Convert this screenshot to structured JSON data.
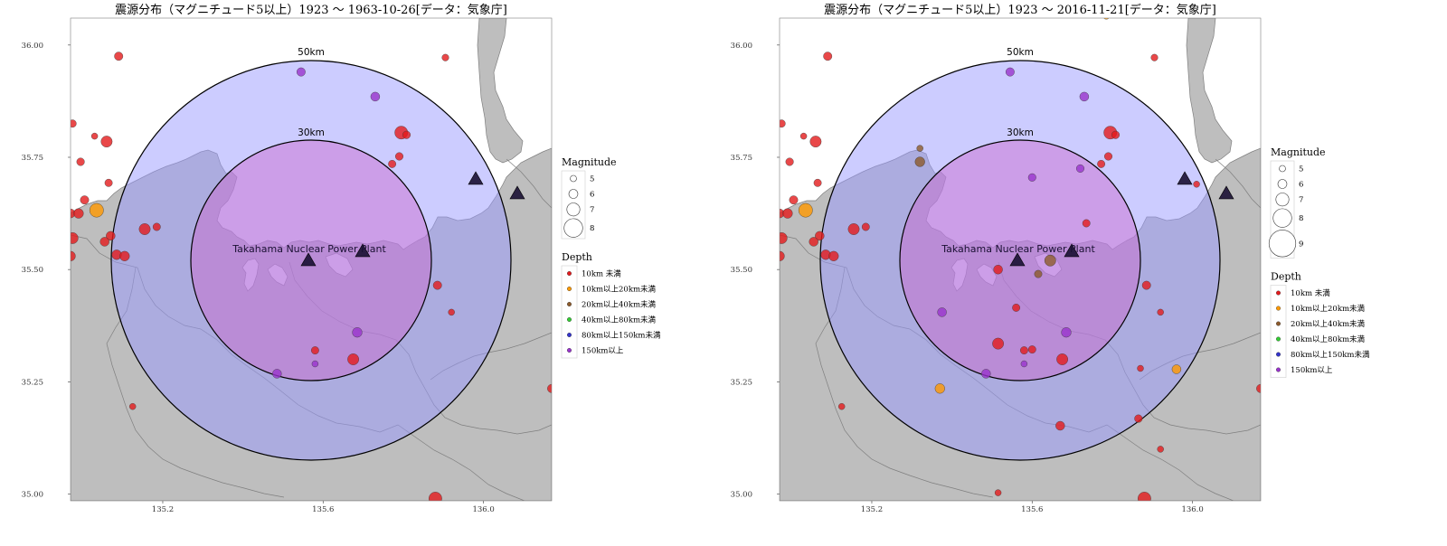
{
  "colors": {
    "land": "#bebebe",
    "sea": "#ffffff",
    "border": "#7f7f7f",
    "ring50": "#9999ff",
    "ring30": "#cc66cc",
    "depth_10": "#e31a1c",
    "depth_10_20": "#ff9900",
    "depth_20_40": "#8c5a2b",
    "depth_40_80": "#33cc33",
    "depth_80_150": "#3333cc",
    "depth_150": "#9933cc"
  },
  "legend": {
    "magnitude_title": "Magnitude",
    "depth_title": "Depth",
    "depth_labels": [
      "10km 未満",
      "10km以上20km未満",
      "20km以上40km未満",
      "40km以上80km未満",
      "80km以上150km未満",
      "150km以上"
    ]
  },
  "plant": {
    "label": "Takahama Nuclear Power Plant",
    "lon": 135.505,
    "lat": 35.522
  },
  "rings": {
    "label_50": "50km",
    "label_30": "30km"
  },
  "chart_data": [
    {
      "type": "scatter",
      "title": "震源分布（マグニチュード5以上）1923 ～ 1963-10-26[データ：気象庁]",
      "xlabel": "",
      "ylabel": "",
      "xlim": [
        134.97,
        136.17
      ],
      "ylim": [
        34.985,
        36.06
      ],
      "xticks": [
        "135.2",
        "135.6",
        "136.0"
      ],
      "yticks": [
        "35.00",
        "35.25",
        "35.50",
        "35.75",
        "36.00"
      ],
      "magnitude_legend": [
        "5",
        "6",
        "7",
        "8"
      ],
      "points": [
        {
          "lon": 135.09,
          "lat": 35.975,
          "mag": 5.8,
          "depth": 0
        },
        {
          "lon": 135.545,
          "lat": 35.94,
          "mag": 5.8,
          "depth": 5
        },
        {
          "lon": 135.905,
          "lat": 35.972,
          "mag": 5.2,
          "depth": 0
        },
        {
          "lon": 134.975,
          "lat": 35.825,
          "mag": 5.5,
          "depth": 0
        },
        {
          "lon": 135.03,
          "lat": 35.797,
          "mag": 5.0,
          "depth": 0
        },
        {
          "lon": 135.06,
          "lat": 35.785,
          "mag": 6.6,
          "depth": 0
        },
        {
          "lon": 135.73,
          "lat": 35.885,
          "mag": 6.0,
          "depth": 5
        },
        {
          "lon": 135.795,
          "lat": 35.805,
          "mag": 7.0,
          "depth": 0
        },
        {
          "lon": 135.808,
          "lat": 35.8,
          "mag": 5.6,
          "depth": 0
        },
        {
          "lon": 134.995,
          "lat": 35.74,
          "mag": 5.6,
          "depth": 0
        },
        {
          "lon": 135.79,
          "lat": 35.752,
          "mag": 5.6,
          "depth": 0
        },
        {
          "lon": 135.772,
          "lat": 35.735,
          "mag": 5.5,
          "depth": 0
        },
        {
          "lon": 135.065,
          "lat": 35.693,
          "mag": 5.5,
          "depth": 0
        },
        {
          "lon": 134.97,
          "lat": 35.625,
          "mag": 6.0,
          "depth": 0
        },
        {
          "lon": 134.99,
          "lat": 35.625,
          "mag": 6.2,
          "depth": 0
        },
        {
          "lon": 135.005,
          "lat": 35.655,
          "mag": 5.8,
          "depth": 0
        },
        {
          "lon": 135.035,
          "lat": 35.632,
          "mag": 7.2,
          "depth": 1
        },
        {
          "lon": 135.185,
          "lat": 35.595,
          "mag": 5.5,
          "depth": 0
        },
        {
          "lon": 135.155,
          "lat": 35.59,
          "mag": 6.6,
          "depth": 0
        },
        {
          "lon": 135.07,
          "lat": 35.575,
          "mag": 6.0,
          "depth": 0
        },
        {
          "lon": 135.055,
          "lat": 35.562,
          "mag": 6.0,
          "depth": 0
        },
        {
          "lon": 135.085,
          "lat": 35.533,
          "mag": 6.2,
          "depth": 0
        },
        {
          "lon": 135.105,
          "lat": 35.53,
          "mag": 6.2,
          "depth": 0
        },
        {
          "lon": 134.975,
          "lat": 35.57,
          "mag": 6.6,
          "depth": 0
        },
        {
          "lon": 134.97,
          "lat": 35.53,
          "mag": 6.2,
          "depth": 0
        },
        {
          "lon": 135.885,
          "lat": 35.465,
          "mag": 5.8,
          "depth": 0
        },
        {
          "lon": 135.92,
          "lat": 35.405,
          "mag": 5.0,
          "depth": 0
        },
        {
          "lon": 135.685,
          "lat": 35.36,
          "mag": 6.2,
          "depth": 5
        },
        {
          "lon": 135.58,
          "lat": 35.32,
          "mag": 5.5,
          "depth": 0
        },
        {
          "lon": 135.675,
          "lat": 35.3,
          "mag": 6.6,
          "depth": 0
        },
        {
          "lon": 135.58,
          "lat": 35.29,
          "mag": 5.0,
          "depth": 5
        },
        {
          "lon": 135.485,
          "lat": 35.268,
          "mag": 6.0,
          "depth": 5
        },
        {
          "lon": 135.125,
          "lat": 35.195,
          "mag": 5.0,
          "depth": 0
        },
        {
          "lon": 135.88,
          "lat": 34.99,
          "mag": 7.0,
          "depth": 0
        },
        {
          "lon": 136.17,
          "lat": 35.235,
          "mag": 5.8,
          "depth": 0
        }
      ]
    },
    {
      "type": "scatter",
      "title": "震源分布（マグニチュード5以上）1923 ～ 2016-11-21[データ：気象庁]",
      "xlabel": "",
      "ylabel": "",
      "xlim": [
        134.97,
        136.17
      ],
      "ylim": [
        34.985,
        36.06
      ],
      "xticks": [
        "135.2",
        "135.6",
        "136.0"
      ],
      "yticks": [
        "35.00",
        "35.25",
        "35.50",
        "35.75",
        "36.00"
      ],
      "magnitude_legend": [
        "5",
        "6",
        "7",
        "8",
        "9"
      ],
      "points": [
        {
          "lon": 135.09,
          "lat": 35.975,
          "mag": 5.8,
          "depth": 0
        },
        {
          "lon": 135.545,
          "lat": 35.94,
          "mag": 5.8,
          "depth": 5
        },
        {
          "lon": 135.905,
          "lat": 35.972,
          "mag": 5.2,
          "depth": 0
        },
        {
          "lon": 135.785,
          "lat": 36.065,
          "mag": 5.2,
          "depth": 1
        },
        {
          "lon": 134.975,
          "lat": 35.825,
          "mag": 5.5,
          "depth": 0
        },
        {
          "lon": 135.03,
          "lat": 35.797,
          "mag": 5.0,
          "depth": 0
        },
        {
          "lon": 135.06,
          "lat": 35.785,
          "mag": 6.6,
          "depth": 0
        },
        {
          "lon": 135.73,
          "lat": 35.885,
          "mag": 6.0,
          "depth": 5
        },
        {
          "lon": 135.795,
          "lat": 35.805,
          "mag": 7.0,
          "depth": 0
        },
        {
          "lon": 135.808,
          "lat": 35.8,
          "mag": 5.6,
          "depth": 0
        },
        {
          "lon": 134.995,
          "lat": 35.74,
          "mag": 5.6,
          "depth": 0
        },
        {
          "lon": 135.79,
          "lat": 35.752,
          "mag": 5.6,
          "depth": 0
        },
        {
          "lon": 135.772,
          "lat": 35.735,
          "mag": 5.5,
          "depth": 0
        },
        {
          "lon": 135.32,
          "lat": 35.77,
          "mag": 5.0,
          "depth": 2
        },
        {
          "lon": 135.32,
          "lat": 35.74,
          "mag": 6.2,
          "depth": 2
        },
        {
          "lon": 135.72,
          "lat": 35.725,
          "mag": 5.6,
          "depth": 5
        },
        {
          "lon": 135.065,
          "lat": 35.693,
          "mag": 5.5,
          "depth": 0
        },
        {
          "lon": 135.6,
          "lat": 35.705,
          "mag": 5.6,
          "depth": 5
        },
        {
          "lon": 136.01,
          "lat": 35.69,
          "mag": 5.0,
          "depth": 0
        },
        {
          "lon": 134.97,
          "lat": 35.625,
          "mag": 6.0,
          "depth": 0
        },
        {
          "lon": 134.99,
          "lat": 35.625,
          "mag": 6.2,
          "depth": 0
        },
        {
          "lon": 135.005,
          "lat": 35.655,
          "mag": 5.8,
          "depth": 0
        },
        {
          "lon": 135.035,
          "lat": 35.632,
          "mag": 7.2,
          "depth": 1
        },
        {
          "lon": 135.185,
          "lat": 35.595,
          "mag": 5.5,
          "depth": 0
        },
        {
          "lon": 135.155,
          "lat": 35.59,
          "mag": 6.6,
          "depth": 0
        },
        {
          "lon": 135.07,
          "lat": 35.575,
          "mag": 6.0,
          "depth": 0
        },
        {
          "lon": 135.055,
          "lat": 35.562,
          "mag": 6.0,
          "depth": 0
        },
        {
          "lon": 135.085,
          "lat": 35.533,
          "mag": 6.2,
          "depth": 0
        },
        {
          "lon": 135.105,
          "lat": 35.53,
          "mag": 6.2,
          "depth": 0
        },
        {
          "lon": 134.975,
          "lat": 35.57,
          "mag": 6.6,
          "depth": 0
        },
        {
          "lon": 134.97,
          "lat": 35.53,
          "mag": 6.2,
          "depth": 0
        },
        {
          "lon": 135.735,
          "lat": 35.603,
          "mag": 5.5,
          "depth": 0
        },
        {
          "lon": 135.645,
          "lat": 35.52,
          "mag": 6.6,
          "depth": 2
        },
        {
          "lon": 135.615,
          "lat": 35.49,
          "mag": 5.5,
          "depth": 2
        },
        {
          "lon": 135.515,
          "lat": 35.5,
          "mag": 6.0,
          "depth": 0
        },
        {
          "lon": 135.885,
          "lat": 35.465,
          "mag": 5.8,
          "depth": 0
        },
        {
          "lon": 135.56,
          "lat": 35.415,
          "mag": 5.5,
          "depth": 0
        },
        {
          "lon": 135.375,
          "lat": 35.405,
          "mag": 6.0,
          "depth": 5
        },
        {
          "lon": 135.92,
          "lat": 35.405,
          "mag": 5.0,
          "depth": 0
        },
        {
          "lon": 135.685,
          "lat": 35.36,
          "mag": 6.2,
          "depth": 5
        },
        {
          "lon": 135.515,
          "lat": 35.335,
          "mag": 6.6,
          "depth": 0
        },
        {
          "lon": 135.58,
          "lat": 35.32,
          "mag": 5.5,
          "depth": 0
        },
        {
          "lon": 135.6,
          "lat": 35.322,
          "mag": 5.5,
          "depth": 0
        },
        {
          "lon": 135.675,
          "lat": 35.3,
          "mag": 6.6,
          "depth": 0
        },
        {
          "lon": 135.58,
          "lat": 35.29,
          "mag": 5.0,
          "depth": 5
        },
        {
          "lon": 135.485,
          "lat": 35.268,
          "mag": 6.0,
          "depth": 5
        },
        {
          "lon": 135.87,
          "lat": 35.28,
          "mag": 5.0,
          "depth": 0
        },
        {
          "lon": 135.96,
          "lat": 35.278,
          "mag": 6.0,
          "depth": 1
        },
        {
          "lon": 135.37,
          "lat": 35.235,
          "mag": 6.2,
          "depth": 1
        },
        {
          "lon": 135.125,
          "lat": 35.195,
          "mag": 5.0,
          "depth": 0
        },
        {
          "lon": 135.67,
          "lat": 35.152,
          "mag": 6.0,
          "depth": 0
        },
        {
          "lon": 135.865,
          "lat": 35.168,
          "mag": 5.6,
          "depth": 0
        },
        {
          "lon": 135.92,
          "lat": 35.1,
          "mag": 5.0,
          "depth": 0
        },
        {
          "lon": 135.515,
          "lat": 35.003,
          "mag": 5.0,
          "depth": 0
        },
        {
          "lon": 135.88,
          "lat": 34.99,
          "mag": 7.0,
          "depth": 0
        },
        {
          "lon": 136.17,
          "lat": 35.235,
          "mag": 5.8,
          "depth": 0
        }
      ]
    }
  ]
}
